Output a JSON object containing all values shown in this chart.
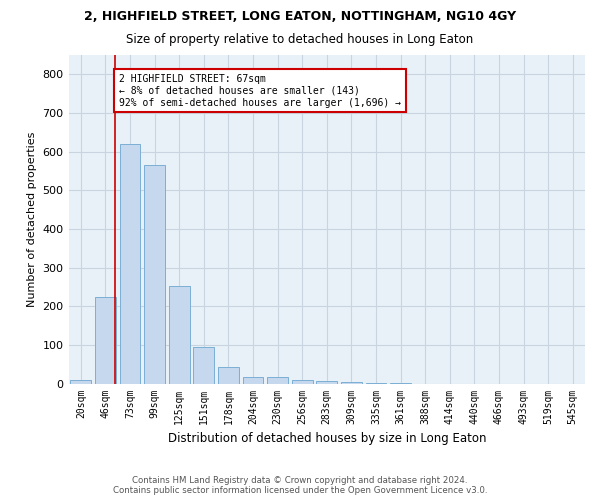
{
  "title": "2, HIGHFIELD STREET, LONG EATON, NOTTINGHAM, NG10 4GY",
  "subtitle": "Size of property relative to detached houses in Long Eaton",
  "xlabel": "Distribution of detached houses by size in Long Eaton",
  "ylabel": "Number of detached properties",
  "bar_color": "#c5d8ed",
  "bar_edge_color": "#7bafd4",
  "background_color": "#ffffff",
  "plot_bg_color": "#e8f0f8",
  "grid_color": "#c8d4e0",
  "annotation_box_color": "#cc0000",
  "vline_color": "#cc0000",
  "vline_x_index": 1.4,
  "annotation_text_line1": "2 HIGHFIELD STREET: 67sqm",
  "annotation_text_line2": "← 8% of detached houses are smaller (143)",
  "annotation_text_line3": "92% of semi-detached houses are larger (1,696) →",
  "footer_line1": "Contains HM Land Registry data © Crown copyright and database right 2024.",
  "footer_line2": "Contains public sector information licensed under the Open Government Licence v3.0.",
  "bin_labels": [
    "20sqm",
    "46sqm",
    "73sqm",
    "99sqm",
    "125sqm",
    "151sqm",
    "178sqm",
    "204sqm",
    "230sqm",
    "256sqm",
    "283sqm",
    "309sqm",
    "335sqm",
    "361sqm",
    "388sqm",
    "414sqm",
    "440sqm",
    "466sqm",
    "493sqm",
    "519sqm",
    "545sqm"
  ],
  "bar_heights": [
    10,
    225,
    620,
    565,
    252,
    95,
    42,
    17,
    18,
    10,
    7,
    3,
    2,
    1,
    0,
    0,
    0,
    0,
    0,
    0,
    0
  ],
  "ylim": [
    0,
    850
  ],
  "yticks": [
    0,
    100,
    200,
    300,
    400,
    500,
    600,
    700,
    800
  ]
}
